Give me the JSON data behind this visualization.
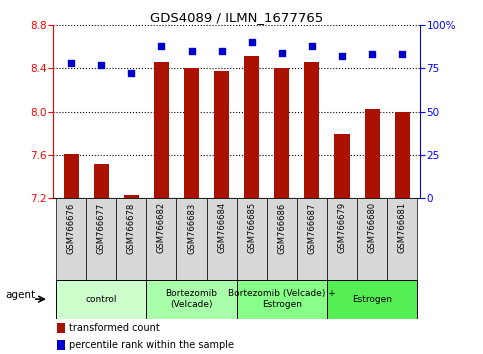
{
  "title": "GDS4089 / ILMN_1677765",
  "samples": [
    "GSM766676",
    "GSM766677",
    "GSM766678",
    "GSM766682",
    "GSM766683",
    "GSM766684",
    "GSM766685",
    "GSM766686",
    "GSM766687",
    "GSM766679",
    "GSM766680",
    "GSM766681"
  ],
  "transformed_count": [
    7.61,
    7.52,
    7.23,
    8.46,
    8.4,
    8.37,
    8.51,
    8.4,
    8.46,
    7.79,
    8.02,
    8.0
  ],
  "percentile_rank": [
    78,
    77,
    72,
    88,
    85,
    85,
    90,
    84,
    88,
    82,
    83,
    83
  ],
  "ylim_left": [
    7.2,
    8.8
  ],
  "ylim_right": [
    0,
    100
  ],
  "yticks_left": [
    7.2,
    7.6,
    8.0,
    8.4,
    8.8
  ],
  "yticks_right": [
    0,
    25,
    50,
    75,
    100
  ],
  "groups": [
    {
      "label": "control",
      "start": 0,
      "end": 3,
      "color": "#ccffcc"
    },
    {
      "label": "Bortezomib\n(Velcade)",
      "start": 3,
      "end": 6,
      "color": "#aaffaa"
    },
    {
      "label": "Bortezomib (Velcade) +\nEstrogen",
      "start": 6,
      "end": 9,
      "color": "#88ff88"
    },
    {
      "label": "Estrogen",
      "start": 9,
      "end": 12,
      "color": "#55ee55"
    }
  ],
  "bar_color": "#aa1100",
  "dot_color": "#0000cc",
  "grid_color": "#000000",
  "bar_bottom": 7.2,
  "agent_label": "agent",
  "legend_items": [
    {
      "label": "transformed count",
      "color": "#aa1100"
    },
    {
      "label": "percentile rank within the sample",
      "color": "#0000cc"
    }
  ]
}
